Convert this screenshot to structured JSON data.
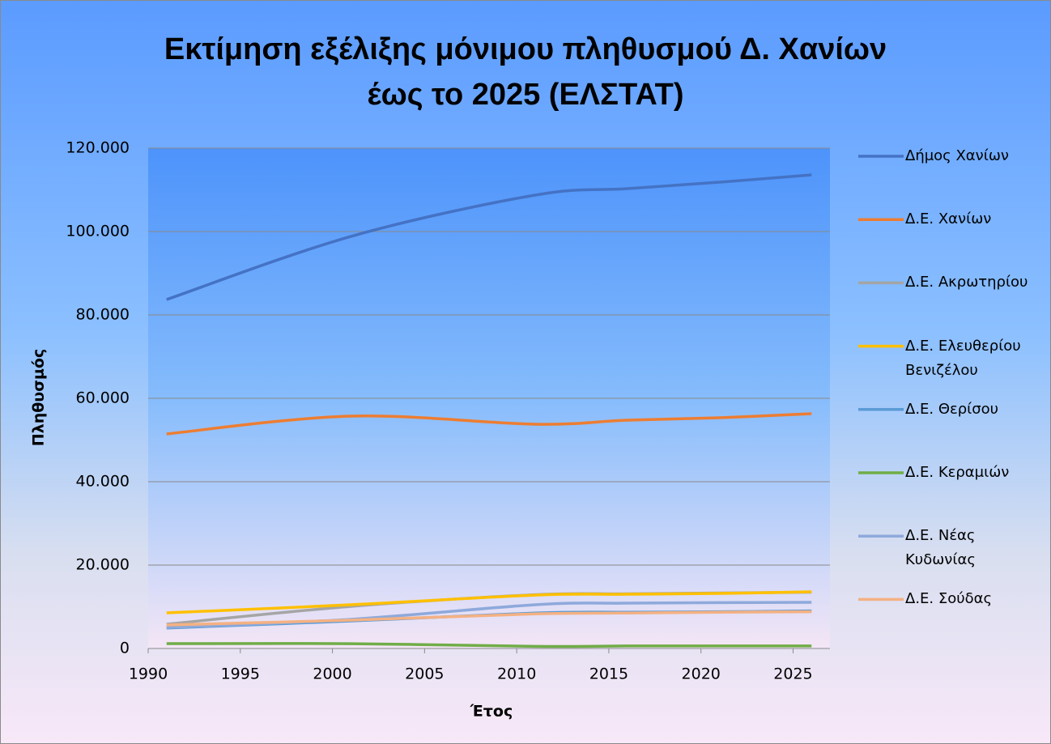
{
  "chart_data": {
    "type": "line",
    "title": [
      "Εκτίμηση εξέλιξης μόνιμου πληθυσμού Δ. Χανίων",
      "έως το 2025 (ΕΛΣΤΑΤ)"
    ],
    "x_label": "Έτος",
    "y_label": "Πληθυσμός",
    "x": [
      1991,
      2001,
      2011,
      2016,
      2021,
      2026
    ],
    "series": [
      {
        "name": "Δήμος Χανίων",
        "color": "#4472c4",
        "values": [
          83690,
          98830,
          108740,
          110290,
          111840,
          113590
        ]
      },
      {
        "name": "Δ.Ε. Χανίων",
        "color": "#ed7d31",
        "values": [
          51460,
          55730,
          53790,
          54760,
          55340,
          56310
        ]
      },
      {
        "name": "Δ.Ε. Ακρωτηρίου",
        "color": "#a5a5a5",
        "values": [
          5830,
          10100,
          12900,
          13100,
          13300,
          13500
        ]
      },
      {
        "name": "Δ.Ε. Ελευθερίου Βενιζέλου",
        "color": "#ffc000",
        "values": [
          8540,
          10480,
          12800,
          13000,
          13200,
          13590
        ]
      },
      {
        "name": "Δ.Ε. Θερίσου",
        "color": "#5b9bd5",
        "values": [
          4900,
          6600,
          8500,
          8700,
          8800,
          9000
        ]
      },
      {
        "name": "Δ.Ε. Κεραμιών",
        "color": "#70ad47",
        "values": [
          1160,
          1150,
          500,
          600,
          600,
          600
        ]
      },
      {
        "name": "Δ.Ε. Νέας Κυδωνίας",
        "color": "#8ea9db",
        "values": [
          5050,
          7000,
          10490,
          10870,
          11000,
          11070
        ]
      },
      {
        "name": "Δ.Ε. Σούδας",
        "color": "#f4b183",
        "values": [
          5630,
          6800,
          8300,
          8500,
          8700,
          8800
        ]
      }
    ],
    "xlim": [
      1990,
      2027
    ],
    "xticks": [
      1990,
      1995,
      2000,
      2005,
      2010,
      2015,
      2020,
      2025
    ],
    "ylim": [
      0,
      120000
    ],
    "yticks": [
      0,
      {
        "value": 20000,
        "label": "20.000"
      },
      {
        "value": 40000,
        "label": "40.000"
      },
      {
        "value": 60000,
        "label": "60.000"
      },
      {
        "value": 80000,
        "label": "80.000"
      },
      {
        "value": 100000,
        "label": "100.000"
      },
      {
        "value": 120000,
        "label": "120.000"
      }
    ],
    "grid": true,
    "legend": "right"
  }
}
